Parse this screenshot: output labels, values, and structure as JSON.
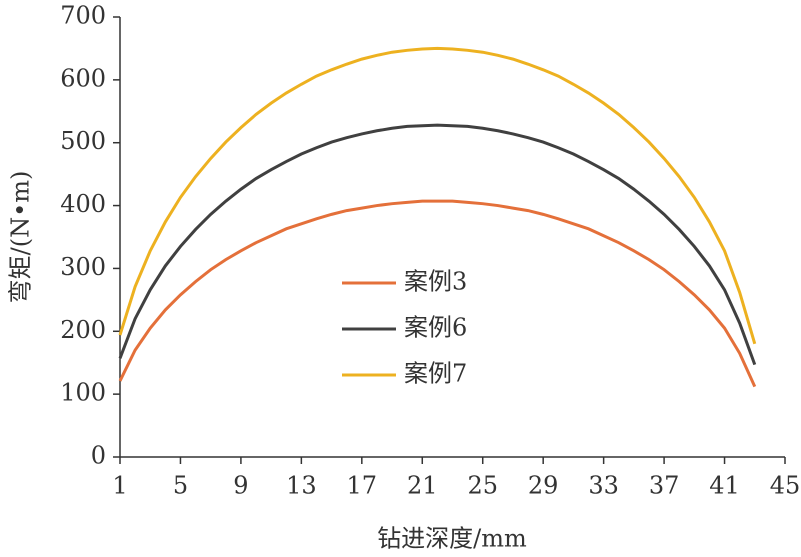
{
  "chart_data": {
    "type": "line",
    "x_label": "钻进深度/mm",
    "y_label": "弯矩/(N•m)",
    "x": [
      1,
      2,
      3,
      4,
      5,
      6,
      7,
      8,
      9,
      10,
      11,
      12,
      13,
      14,
      15,
      16,
      17,
      18,
      19,
      20,
      21,
      22,
      23,
      24,
      25,
      26,
      27,
      28,
      29,
      30,
      31,
      32,
      33,
      34,
      35,
      36,
      37,
      38,
      39,
      40,
      41,
      42,
      43
    ],
    "series": [
      {
        "name": "案例3",
        "color": "#e4703a",
        "values": [
          121,
          170,
          205,
          234,
          258,
          279,
          298,
          314,
          328,
          341,
          352,
          363,
          371,
          379,
          386,
          392,
          396,
          400,
          403,
          405,
          407,
          407,
          407,
          405,
          403,
          400,
          396,
          392,
          386,
          379,
          371,
          363,
          352,
          341,
          328,
          314,
          298,
          279,
          258,
          234,
          205,
          165,
          112
        ]
      },
      {
        "name": "案例6",
        "color": "#404040",
        "values": [
          157,
          220,
          266,
          304,
          335,
          362,
          386,
          407,
          426,
          443,
          457,
          470,
          482,
          492,
          501,
          508,
          514,
          519,
          523,
          526,
          527,
          528,
          527,
          526,
          523,
          519,
          514,
          508,
          501,
          492,
          482,
          470,
          457,
          443,
          426,
          407,
          386,
          362,
          335,
          304,
          266,
          213,
          147
        ]
      },
      {
        "name": "案例7",
        "color": "#edb120",
        "values": [
          194,
          271,
          328,
          374,
          413,
          446,
          475,
          501,
          524,
          545,
          563,
          579,
          593,
          606,
          616,
          625,
          633,
          639,
          644,
          647,
          649,
          650,
          649,
          647,
          644,
          639,
          633,
          625,
          616,
          606,
          593,
          579,
          563,
          545,
          524,
          501,
          475,
          446,
          413,
          374,
          328,
          262,
          180
        ]
      }
    ],
    "xlim": [
      1,
      45
    ],
    "ylim": [
      0,
      700
    ],
    "xticks": [
      1,
      5,
      9,
      13,
      17,
      21,
      25,
      29,
      33,
      37,
      41,
      45
    ],
    "yticks": [
      0,
      100,
      200,
      300,
      400,
      500,
      600,
      700
    ],
    "legend": "center"
  }
}
